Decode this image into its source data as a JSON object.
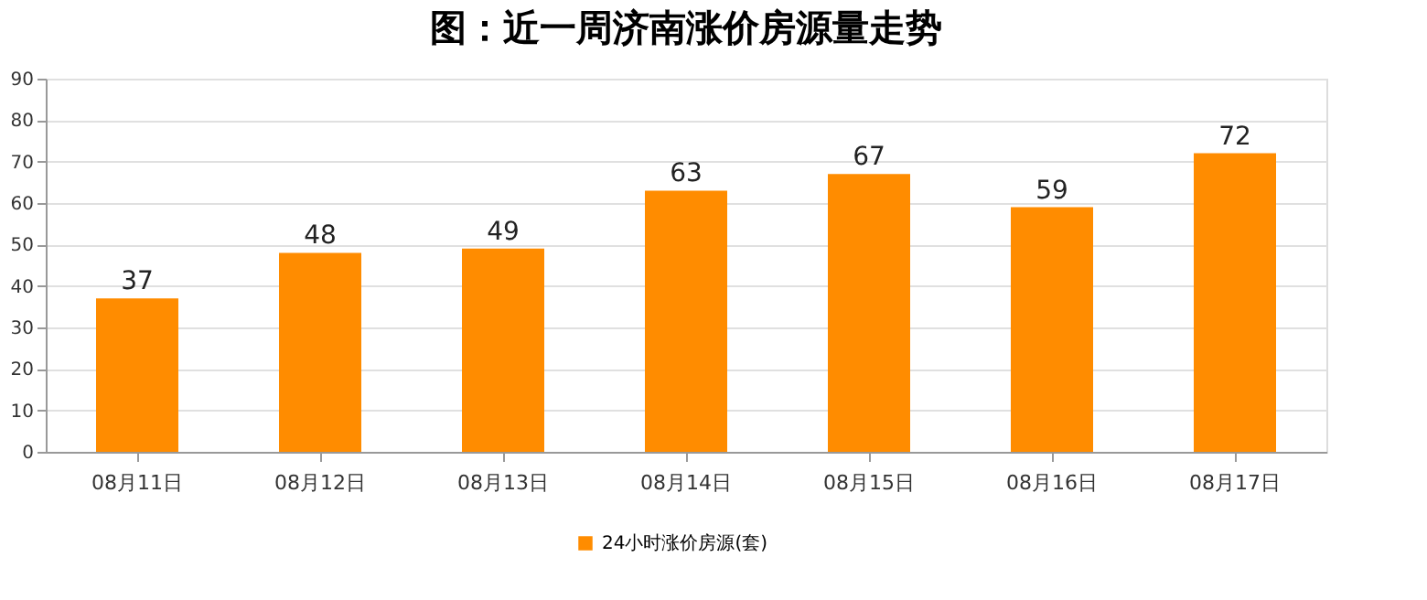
{
  "chart_data": {
    "type": "bar",
    "title": "图：近一周济南涨价房源量走势",
    "categories": [
      "08月11日",
      "08月12日",
      "08月13日",
      "08月14日",
      "08月15日",
      "08月16日",
      "08月17日"
    ],
    "series": [
      {
        "name": "24小时涨价房源(套)",
        "color": "#ff8c00",
        "values": [
          37,
          48,
          49,
          63,
          67,
          59,
          72
        ]
      }
    ],
    "ylim": [
      0,
      90
    ],
    "yticks": [
      0,
      10,
      20,
      30,
      40,
      50,
      60,
      70,
      80,
      90
    ],
    "grid": "y",
    "legend": "bottom",
    "data_labels": true
  }
}
